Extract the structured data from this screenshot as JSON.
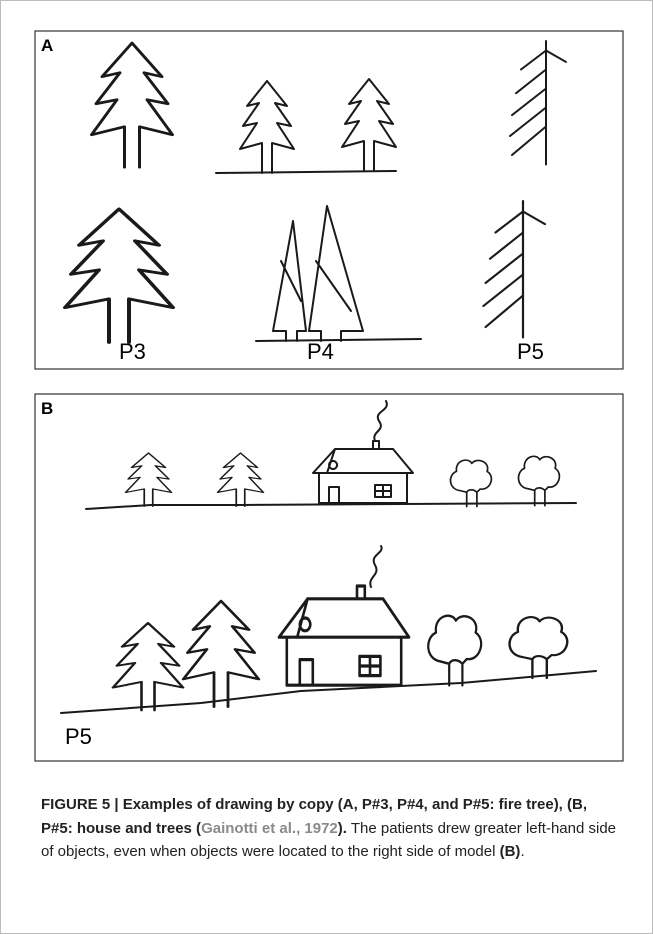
{
  "panels": [
    {
      "label": "A",
      "labels": [
        "P3",
        "P4",
        "P5"
      ]
    },
    {
      "label": "B",
      "labels": [
        "P5"
      ]
    }
  ],
  "caption": {
    "title": "FIGURE 5 | Examples of drawing by copy (A, P#3, P#4, and P#5: fire tree), (B, P#5: house and trees (",
    "citation": "Gainotti et al., 1972",
    "title_end": ").",
    "text": " The patients drew greater left-hand side of objects, even when objects were located to the right side of model ",
    "ref": "(B)",
    "end": "."
  }
}
